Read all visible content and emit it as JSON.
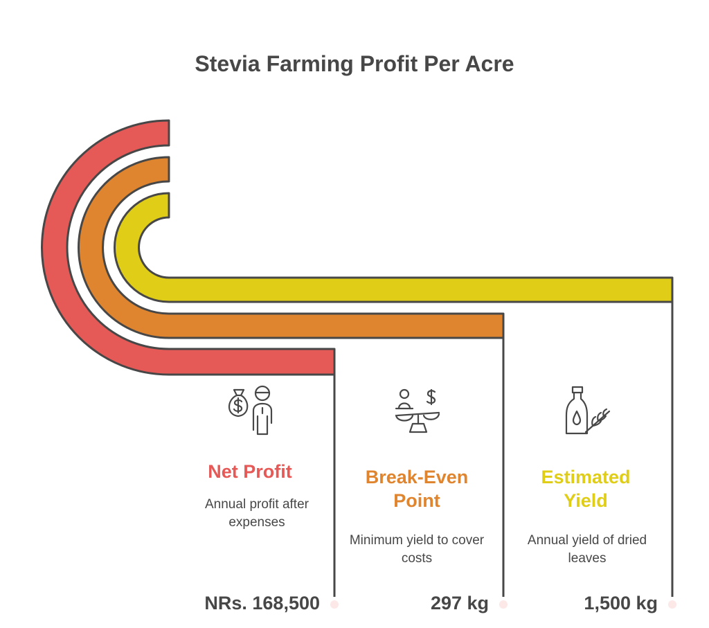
{
  "title": "Stevia Farming Profit Per Acre",
  "colors": {
    "net_profit": "#E55957",
    "break_even": "#E0852F",
    "estimated_yield": "#E0CD18",
    "outline": "#474747",
    "text": "#474747"
  },
  "items": [
    {
      "heading": "Net Profit",
      "description": "Annual profit after expenses",
      "value": "NRs. 168,500",
      "icon": "money-bag-person-icon"
    },
    {
      "heading": "Break-Even Point",
      "description": "Minimum yield to cover costs",
      "value": "297 kg",
      "icon": "balance-scale-icon"
    },
    {
      "heading": "Estimated Yield",
      "description": "Annual yield of dried leaves",
      "value": "1,500 kg",
      "icon": "bottle-sprig-icon"
    }
  ]
}
